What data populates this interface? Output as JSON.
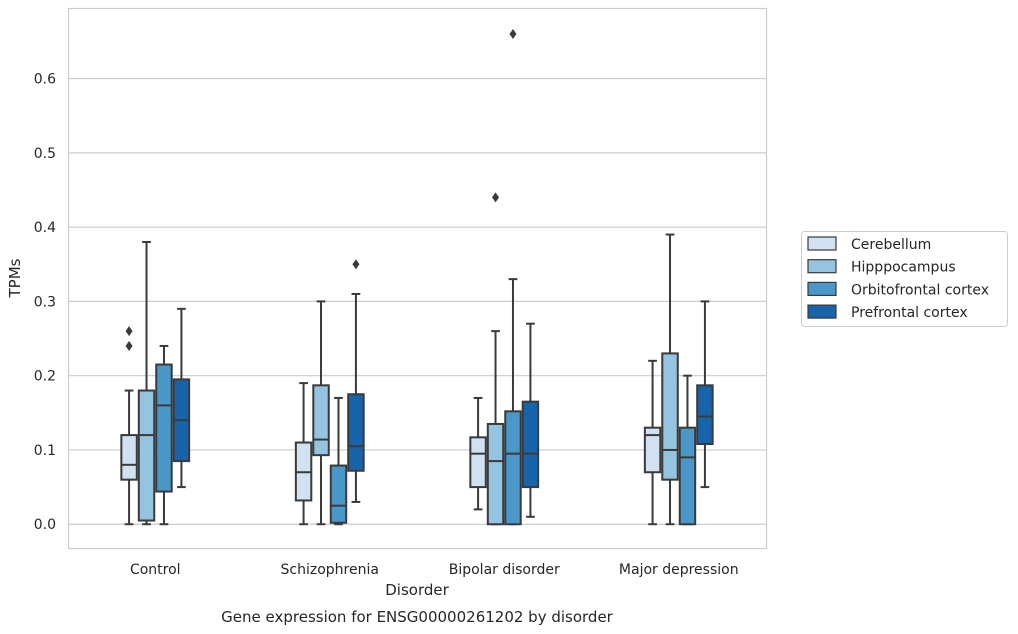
{
  "chart_data": {
    "type": "box",
    "xlabel": "Disorder",
    "ylabel": "TPMs",
    "caption": "Gene expression for ENSG00000261202 by disorder",
    "ylim": [
      -0.032,
      0.695
    ],
    "yticks": [
      0.0,
      0.1,
      0.2,
      0.3,
      0.4,
      0.5,
      0.6
    ],
    "ytick_labels": [
      "0.0",
      "0.1",
      "0.2",
      "0.3",
      "0.4",
      "0.5",
      "0.6"
    ],
    "grid": "horizontal",
    "legend_position": "right",
    "categories": [
      "Control",
      "Schizophrenia",
      "Bipolar disorder",
      "Major depression"
    ],
    "series": [
      {
        "name": "Cerebellum",
        "color": "#d0e1f2",
        "boxes": [
          {
            "whislo": 0.0,
            "q1": 0.06,
            "med": 0.08,
            "q3": 0.12,
            "whishi": 0.18,
            "fliers": [
              0.24,
              0.26
            ]
          },
          {
            "whislo": 0.0,
            "q1": 0.032,
            "med": 0.07,
            "q3": 0.11,
            "whishi": 0.19,
            "fliers": []
          },
          {
            "whislo": 0.02,
            "q1": 0.05,
            "med": 0.095,
            "q3": 0.117,
            "whishi": 0.17,
            "fliers": []
          },
          {
            "whislo": 0.0,
            "q1": 0.07,
            "med": 0.12,
            "q3": 0.13,
            "whishi": 0.22,
            "fliers": []
          }
        ]
      },
      {
        "name": "Hipppocampus",
        "color": "#94c4df",
        "boxes": [
          {
            "whislo": 0.0,
            "q1": 0.005,
            "med": 0.12,
            "q3": 0.18,
            "whishi": 0.38,
            "fliers": []
          },
          {
            "whislo": 0.0,
            "q1": 0.093,
            "med": 0.114,
            "q3": 0.187,
            "whishi": 0.3,
            "fliers": []
          },
          {
            "whislo": 0.0,
            "q1": 0.0,
            "med": 0.085,
            "q3": 0.135,
            "whishi": 0.26,
            "fliers": [
              0.44
            ]
          },
          {
            "whislo": 0.0,
            "q1": 0.06,
            "med": 0.1,
            "q3": 0.23,
            "whishi": 0.39,
            "fliers": []
          }
        ]
      },
      {
        "name": "Orbitofrontal cortex",
        "color": "#4a98c9",
        "boxes": [
          {
            "whislo": 0.0,
            "q1": 0.044,
            "med": 0.16,
            "q3": 0.215,
            "whishi": 0.24,
            "fliers": []
          },
          {
            "whislo": 0.0,
            "q1": 0.002,
            "med": 0.025,
            "q3": 0.079,
            "whishi": 0.17,
            "fliers": []
          },
          {
            "whislo": 0.0,
            "q1": 0.0,
            "med": 0.095,
            "q3": 0.152,
            "whishi": 0.33,
            "fliers": [
              0.66
            ]
          },
          {
            "whislo": 0.0,
            "q1": 0.0,
            "med": 0.09,
            "q3": 0.13,
            "whishi": 0.2,
            "fliers": []
          }
        ]
      },
      {
        "name": "Prefrontal cortex",
        "color": "#1764ab",
        "boxes": [
          {
            "whislo": 0.05,
            "q1": 0.085,
            "med": 0.14,
            "q3": 0.195,
            "whishi": 0.29,
            "fliers": []
          },
          {
            "whislo": 0.03,
            "q1": 0.072,
            "med": 0.105,
            "q3": 0.175,
            "whishi": 0.31,
            "fliers": [
              0.35
            ]
          },
          {
            "whislo": 0.01,
            "q1": 0.05,
            "med": 0.095,
            "q3": 0.165,
            "whishi": 0.27,
            "fliers": []
          },
          {
            "whislo": 0.05,
            "q1": 0.108,
            "med": 0.145,
            "q3": 0.187,
            "whishi": 0.3,
            "fliers": []
          }
        ]
      }
    ]
  }
}
